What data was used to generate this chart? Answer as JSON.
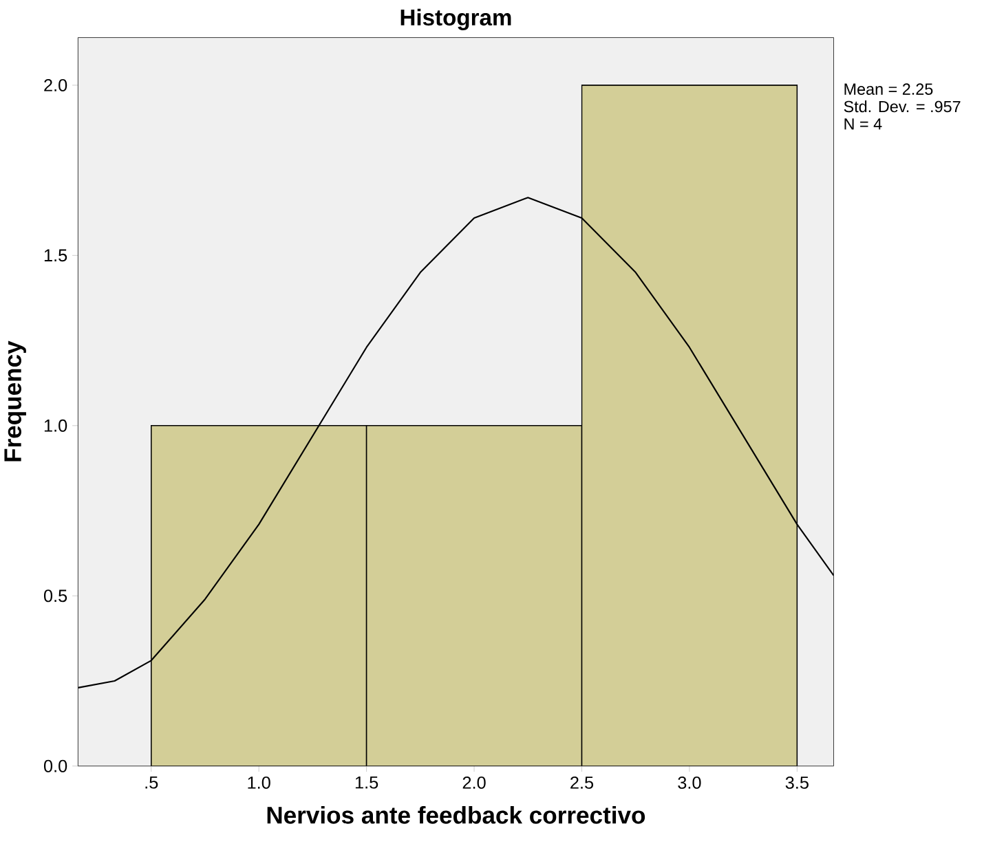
{
  "chart_data": {
    "type": "histogram",
    "title": "Histogram",
    "xlabel": "Nervios ante feedback correctivo",
    "ylabel": "Frequency",
    "bins": [
      0.5,
      1.5,
      2.5,
      3.5
    ],
    "values": [
      1,
      1,
      2
    ],
    "color": "#d3ce97",
    "series": [
      {
        "type": "line",
        "color": "#000000",
        "x": [
          0.16,
          0.33,
          0.5,
          0.75,
          1.0,
          1.25,
          1.5,
          1.75,
          2.0,
          2.25,
          2.5,
          2.75,
          3.0,
          3.25,
          3.5,
          3.67
        ],
        "values": [
          0.23,
          0.25,
          0.31,
          0.49,
          0.71,
          0.97,
          1.23,
          1.45,
          1.61,
          1.67,
          1.61,
          1.45,
          1.23,
          0.97,
          0.71,
          0.56
        ]
      }
    ],
    "xlim": [
      0.16,
      3.67
    ],
    "ylim": [
      0,
      2.14
    ],
    "xticks": [
      {
        "value": 0.5,
        "label": ".5"
      },
      {
        "value": 1.0,
        "label": "1.0"
      },
      {
        "value": 1.5,
        "label": "1.5"
      },
      {
        "value": 2.0,
        "label": "2.0"
      },
      {
        "value": 2.5,
        "label": "2.5"
      },
      {
        "value": 3.0,
        "label": "3.0"
      },
      {
        "value": 3.5,
        "label": "3.5"
      }
    ],
    "yticks": [
      {
        "value": 0,
        "label": "0.0"
      },
      {
        "value": 0.5,
        "label": "0.5"
      },
      {
        "value": 1.0,
        "label": "1.0"
      },
      {
        "value": 1.5,
        "label": "1.5"
      },
      {
        "value": 2.0,
        "label": "2.0"
      }
    ],
    "annotations": [
      "Mean = 2.25",
      "Std. Dev. = .957",
      "N = 4"
    ]
  }
}
